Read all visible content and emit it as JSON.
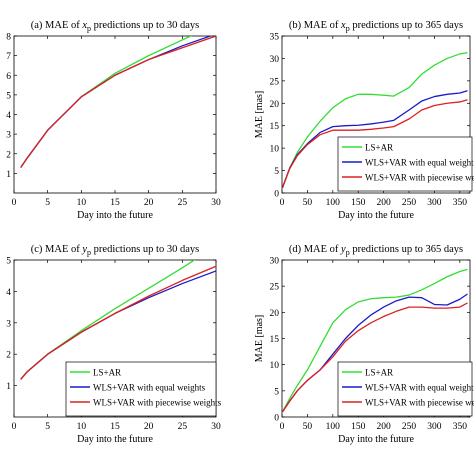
{
  "colors": {
    "ls_ar": "#33dd33",
    "equal": "#1a1acc",
    "piecewise": "#dd2020"
  },
  "chart_data": [
    {
      "type": "line",
      "title_prefix": "(a) MAE of ",
      "title_var": "x",
      "title_sub": "p",
      "title_suffix": " predictions up to 30 days",
      "xlabel": "Day into the future",
      "ylabel": "",
      "xlim": [
        0,
        30
      ],
      "ylim": [
        0,
        8
      ],
      "xticks": [
        0,
        5,
        10,
        15,
        20,
        25,
        30
      ],
      "yticks": [
        1,
        2,
        3,
        4,
        5,
        6,
        7,
        8
      ],
      "ytick_labels": [
        "1",
        "2",
        "3",
        "4",
        "5",
        "6",
        "7",
        "8"
      ],
      "show_legend": false,
      "series": [
        {
          "name": "LS+AR",
          "color_key": "ls_ar",
          "x": [
            1,
            2,
            5,
            10,
            15,
            20,
            25,
            30
          ],
          "y": [
            1.3,
            1.8,
            3.2,
            4.9,
            6.1,
            7.0,
            7.8,
            8.6
          ]
        },
        {
          "name": "WLS+VAR with equal weights",
          "color_key": "equal",
          "x": [
            1,
            2,
            5,
            10,
            15,
            20,
            25,
            30
          ],
          "y": [
            1.3,
            1.8,
            3.2,
            4.9,
            6.0,
            6.8,
            7.5,
            8.1
          ]
        },
        {
          "name": "WLS+VAR with piecewise weights",
          "color_key": "piecewise",
          "x": [
            1,
            2,
            5,
            10,
            15,
            20,
            25,
            30
          ],
          "y": [
            1.3,
            1.8,
            3.2,
            4.9,
            6.0,
            6.8,
            7.4,
            8.0
          ]
        }
      ]
    },
    {
      "type": "line",
      "title_prefix": "(b) MAE of ",
      "title_var": "x",
      "title_sub": "p",
      "title_suffix": " predictions up to 365 days",
      "xlabel": "Day into the future",
      "ylabel": "MAE [mas]",
      "xlim": [
        0,
        370
      ],
      "ylim": [
        0,
        35
      ],
      "xticks": [
        0,
        50,
        100,
        150,
        200,
        250,
        300,
        350
      ],
      "yticks": [
        0,
        5,
        10,
        15,
        20,
        25,
        30,
        35
      ],
      "ytick_labels": [
        "0",
        "5",
        "10",
        "15",
        "20",
        "25",
        "30",
        "35"
      ],
      "show_legend": true,
      "series": [
        {
          "name": "LS+AR",
          "color_key": "ls_ar",
          "x": [
            1,
            15,
            30,
            50,
            75,
            100,
            125,
            150,
            175,
            200,
            220,
            250,
            275,
            300,
            325,
            350,
            365
          ],
          "y": [
            1.2,
            5.5,
            9.0,
            12.5,
            16.0,
            19.0,
            21.0,
            22.0,
            22.0,
            21.8,
            21.6,
            23.5,
            26.5,
            28.5,
            30.0,
            31.0,
            31.3
          ]
        },
        {
          "name": "WLS+VAR with equal weights",
          "color_key": "equal",
          "x": [
            1,
            15,
            30,
            50,
            75,
            100,
            125,
            150,
            175,
            200,
            220,
            250,
            275,
            300,
            325,
            350,
            365
          ],
          "y": [
            1.2,
            5.5,
            8.5,
            11.0,
            13.5,
            14.8,
            15.0,
            15.1,
            15.4,
            15.8,
            16.2,
            18.5,
            20.5,
            21.5,
            22.0,
            22.3,
            22.8
          ]
        },
        {
          "name": "WLS+VAR with piecewise weights",
          "color_key": "piecewise",
          "x": [
            1,
            15,
            30,
            50,
            75,
            100,
            125,
            150,
            175,
            200,
            220,
            250,
            275,
            300,
            325,
            350,
            365
          ],
          "y": [
            1.2,
            5.4,
            8.3,
            10.8,
            13.0,
            14.0,
            14.0,
            14.0,
            14.2,
            14.5,
            14.8,
            16.5,
            18.5,
            19.5,
            20.0,
            20.3,
            20.8
          ]
        }
      ]
    },
    {
      "type": "line",
      "title_prefix": "(c) MAE of ",
      "title_var": "y",
      "title_sub": "p",
      "title_suffix": " predictions up to 30 days",
      "xlabel": "Day into the future",
      "ylabel": "",
      "xlim": [
        0,
        30
      ],
      "ylim": [
        0,
        5
      ],
      "xticks": [
        0,
        5,
        10,
        15,
        20,
        25,
        30
      ],
      "yticks": [
        1,
        2,
        3,
        4,
        5
      ],
      "ytick_labels": [
        "1",
        "2",
        "3",
        "4",
        "5"
      ],
      "show_legend": true,
      "series": [
        {
          "name": "LS+AR",
          "color_key": "ls_ar",
          "x": [
            1,
            2,
            5,
            10,
            15,
            20,
            25,
            30
          ],
          "y": [
            1.2,
            1.45,
            2.0,
            2.75,
            3.45,
            4.1,
            4.75,
            5.45
          ]
        },
        {
          "name": "WLS+VAR with equal weights",
          "color_key": "equal",
          "x": [
            1,
            2,
            5,
            10,
            15,
            20,
            25,
            30
          ],
          "y": [
            1.2,
            1.45,
            2.0,
            2.7,
            3.3,
            3.8,
            4.25,
            4.65
          ]
        },
        {
          "name": "WLS+VAR with piecewise weights",
          "color_key": "piecewise",
          "x": [
            1,
            2,
            5,
            10,
            15,
            20,
            25,
            30
          ],
          "y": [
            1.2,
            1.45,
            2.0,
            2.7,
            3.3,
            3.85,
            4.35,
            4.8
          ]
        }
      ]
    },
    {
      "type": "line",
      "title_prefix": "(d) MAE of ",
      "title_var": "y",
      "title_sub": "p",
      "title_suffix": " predictions up to 365 days",
      "xlabel": "Day into the future",
      "ylabel": "MAE [mas]",
      "xlim": [
        0,
        370
      ],
      "ylim": [
        0,
        30
      ],
      "xticks": [
        0,
        50,
        100,
        150,
        200,
        250,
        300,
        350
      ],
      "yticks": [
        0,
        5,
        10,
        15,
        20,
        25,
        30
      ],
      "ytick_labels": [
        "0",
        "5",
        "10",
        "15",
        "20",
        "25",
        "30"
      ],
      "show_legend": true,
      "series": [
        {
          "name": "LS+AR",
          "color_key": "ls_ar",
          "x": [
            1,
            15,
            30,
            50,
            75,
            100,
            125,
            150,
            175,
            200,
            225,
            250,
            275,
            300,
            325,
            350,
            365
          ],
          "y": [
            1.0,
            3.5,
            6.0,
            9.0,
            13.5,
            18.0,
            20.5,
            22.0,
            22.6,
            22.8,
            22.9,
            23.3,
            24.3,
            25.5,
            26.8,
            27.8,
            28.2
          ]
        },
        {
          "name": "WLS+VAR with equal weights",
          "color_key": "equal",
          "x": [
            1,
            15,
            30,
            50,
            75,
            100,
            125,
            150,
            175,
            200,
            225,
            250,
            275,
            300,
            325,
            350,
            365
          ],
          "y": [
            1.0,
            3.0,
            5.0,
            7.0,
            9.0,
            12.0,
            15.0,
            17.5,
            19.5,
            21.0,
            22.2,
            22.9,
            22.8,
            21.5,
            21.4,
            22.5,
            23.5
          ]
        },
        {
          "name": "WLS+VAR with piecewise weights",
          "color_key": "piecewise",
          "x": [
            1,
            15,
            30,
            50,
            75,
            100,
            125,
            150,
            175,
            200,
            225,
            250,
            275,
            300,
            325,
            350,
            365
          ],
          "y": [
            1.0,
            3.0,
            5.0,
            7.0,
            9.0,
            11.5,
            14.5,
            16.5,
            18.0,
            19.2,
            20.2,
            21.0,
            21.0,
            20.8,
            20.8,
            21.0,
            21.8
          ]
        }
      ]
    }
  ]
}
